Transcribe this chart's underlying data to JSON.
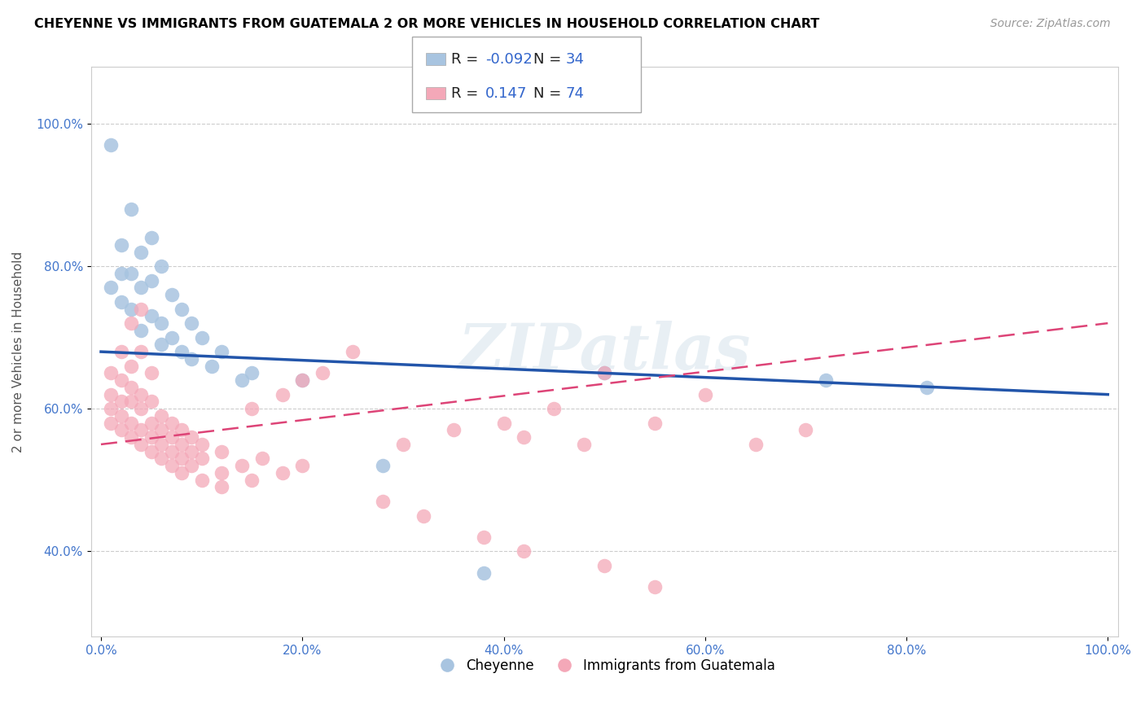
{
  "title": "CHEYENNE VS IMMIGRANTS FROM GUATEMALA 2 OR MORE VEHICLES IN HOUSEHOLD CORRELATION CHART",
  "source": "Source: ZipAtlas.com",
  "ylabel": "2 or more Vehicles in Household",
  "r_cheyenne": -0.092,
  "n_cheyenne": 34,
  "r_guatemala": 0.147,
  "n_guatemala": 74,
  "blue_color": "#a8c4e0",
  "pink_color": "#f4a8b8",
  "blue_line_color": "#2255aa",
  "pink_line_color": "#dd4477",
  "watermark": "ZIPatlas",
  "cheyenne_points": [
    [
      1,
      97
    ],
    [
      3,
      88
    ],
    [
      5,
      84
    ],
    [
      2,
      83
    ],
    [
      4,
      82
    ],
    [
      6,
      80
    ],
    [
      2,
      79
    ],
    [
      3,
      79
    ],
    [
      5,
      78
    ],
    [
      1,
      77
    ],
    [
      4,
      77
    ],
    [
      7,
      76
    ],
    [
      2,
      75
    ],
    [
      3,
      74
    ],
    [
      8,
      74
    ],
    [
      5,
      73
    ],
    [
      6,
      72
    ],
    [
      9,
      72
    ],
    [
      4,
      71
    ],
    [
      7,
      70
    ],
    [
      10,
      70
    ],
    [
      6,
      69
    ],
    [
      8,
      68
    ],
    [
      12,
      68
    ],
    [
      9,
      67
    ],
    [
      11,
      66
    ],
    [
      15,
      65
    ],
    [
      14,
      64
    ],
    [
      20,
      64
    ],
    [
      28,
      52
    ],
    [
      38,
      37
    ],
    [
      50,
      65
    ],
    [
      72,
      64
    ],
    [
      82,
      63
    ]
  ],
  "guatemala_points": [
    [
      1,
      65
    ],
    [
      2,
      68
    ],
    [
      3,
      72
    ],
    [
      4,
      74
    ],
    [
      1,
      62
    ],
    [
      2,
      64
    ],
    [
      3,
      66
    ],
    [
      4,
      68
    ],
    [
      1,
      60
    ],
    [
      2,
      61
    ],
    [
      3,
      63
    ],
    [
      5,
      65
    ],
    [
      1,
      58
    ],
    [
      2,
      59
    ],
    [
      3,
      61
    ],
    [
      4,
      62
    ],
    [
      2,
      57
    ],
    [
      3,
      58
    ],
    [
      4,
      60
    ],
    [
      5,
      61
    ],
    [
      3,
      56
    ],
    [
      4,
      57
    ],
    [
      5,
      58
    ],
    [
      6,
      59
    ],
    [
      4,
      55
    ],
    [
      5,
      56
    ],
    [
      6,
      57
    ],
    [
      7,
      58
    ],
    [
      5,
      54
    ],
    [
      6,
      55
    ],
    [
      7,
      56
    ],
    [
      8,
      57
    ],
    [
      6,
      53
    ],
    [
      7,
      54
    ],
    [
      8,
      55
    ],
    [
      9,
      56
    ],
    [
      7,
      52
    ],
    [
      8,
      53
    ],
    [
      9,
      54
    ],
    [
      10,
      55
    ],
    [
      8,
      51
    ],
    [
      9,
      52
    ],
    [
      10,
      53
    ],
    [
      12,
      54
    ],
    [
      10,
      50
    ],
    [
      12,
      51
    ],
    [
      14,
      52
    ],
    [
      16,
      53
    ],
    [
      12,
      49
    ],
    [
      15,
      50
    ],
    [
      18,
      51
    ],
    [
      20,
      52
    ],
    [
      15,
      60
    ],
    [
      18,
      62
    ],
    [
      20,
      64
    ],
    [
      22,
      65
    ],
    [
      25,
      68
    ],
    [
      30,
      55
    ],
    [
      35,
      57
    ],
    [
      40,
      58
    ],
    [
      45,
      60
    ],
    [
      50,
      65
    ],
    [
      42,
      56
    ],
    [
      48,
      55
    ],
    [
      55,
      58
    ],
    [
      60,
      62
    ],
    [
      65,
      55
    ],
    [
      70,
      57
    ],
    [
      28,
      47
    ],
    [
      32,
      45
    ],
    [
      38,
      42
    ],
    [
      42,
      40
    ],
    [
      50,
      38
    ],
    [
      55,
      35
    ]
  ]
}
